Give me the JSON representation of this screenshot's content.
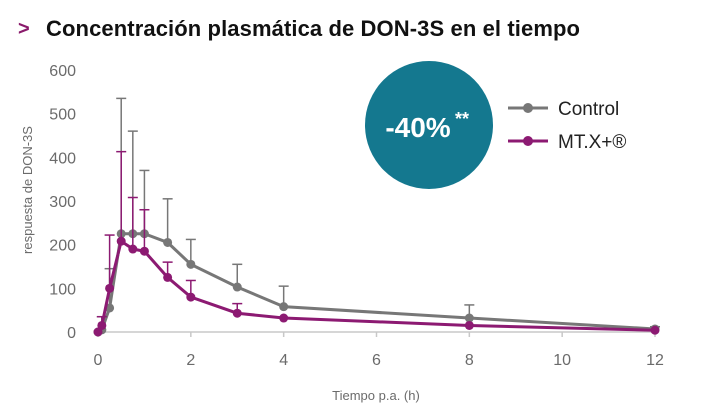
{
  "header": {
    "chevron": ">",
    "title": "Concentración plasmática de DON-3S en el tiempo"
  },
  "badge": {
    "value": "-40%",
    "superscript": "**",
    "color": "#14788f"
  },
  "chart_data": {
    "type": "line",
    "title": "Concentración plasmática de DON-3S en el tiempo",
    "xlabel": "Tiempo p.a. (h)",
    "ylabel": "respuesta de DON-3S",
    "xlim": [
      0,
      12
    ],
    "ylim": [
      0,
      600
    ],
    "xticks": [
      0,
      2,
      4,
      6,
      8,
      10,
      12
    ],
    "yticks": [
      0,
      100,
      200,
      300,
      400,
      500,
      600
    ],
    "grid": false,
    "legend_position": "top-right",
    "series": [
      {
        "name": "Control",
        "color": "#777777",
        "x": [
          0,
          0.083,
          0.25,
          0.5,
          0.75,
          1,
          1.5,
          2,
          3,
          4,
          8,
          12
        ],
        "y": [
          0,
          5,
          55,
          225,
          225,
          225,
          205,
          155,
          103,
          58,
          32,
          7
        ],
        "error_upper": [
          0,
          35,
          145,
          535,
          460,
          370,
          305,
          212,
          155,
          105,
          62,
          12
        ]
      },
      {
        "name": "MT.X+®",
        "color": "#8c1a72",
        "x": [
          0,
          0.083,
          0.25,
          0.5,
          0.75,
          1,
          1.5,
          2,
          3,
          4,
          8,
          12
        ],
        "y": [
          0,
          15,
          100,
          208,
          190,
          185,
          125,
          80,
          43,
          32,
          15,
          4
        ],
        "error_upper": [
          0,
          35,
          222,
          413,
          308,
          280,
          160,
          118,
          65,
          32,
          15,
          4
        ]
      }
    ]
  }
}
